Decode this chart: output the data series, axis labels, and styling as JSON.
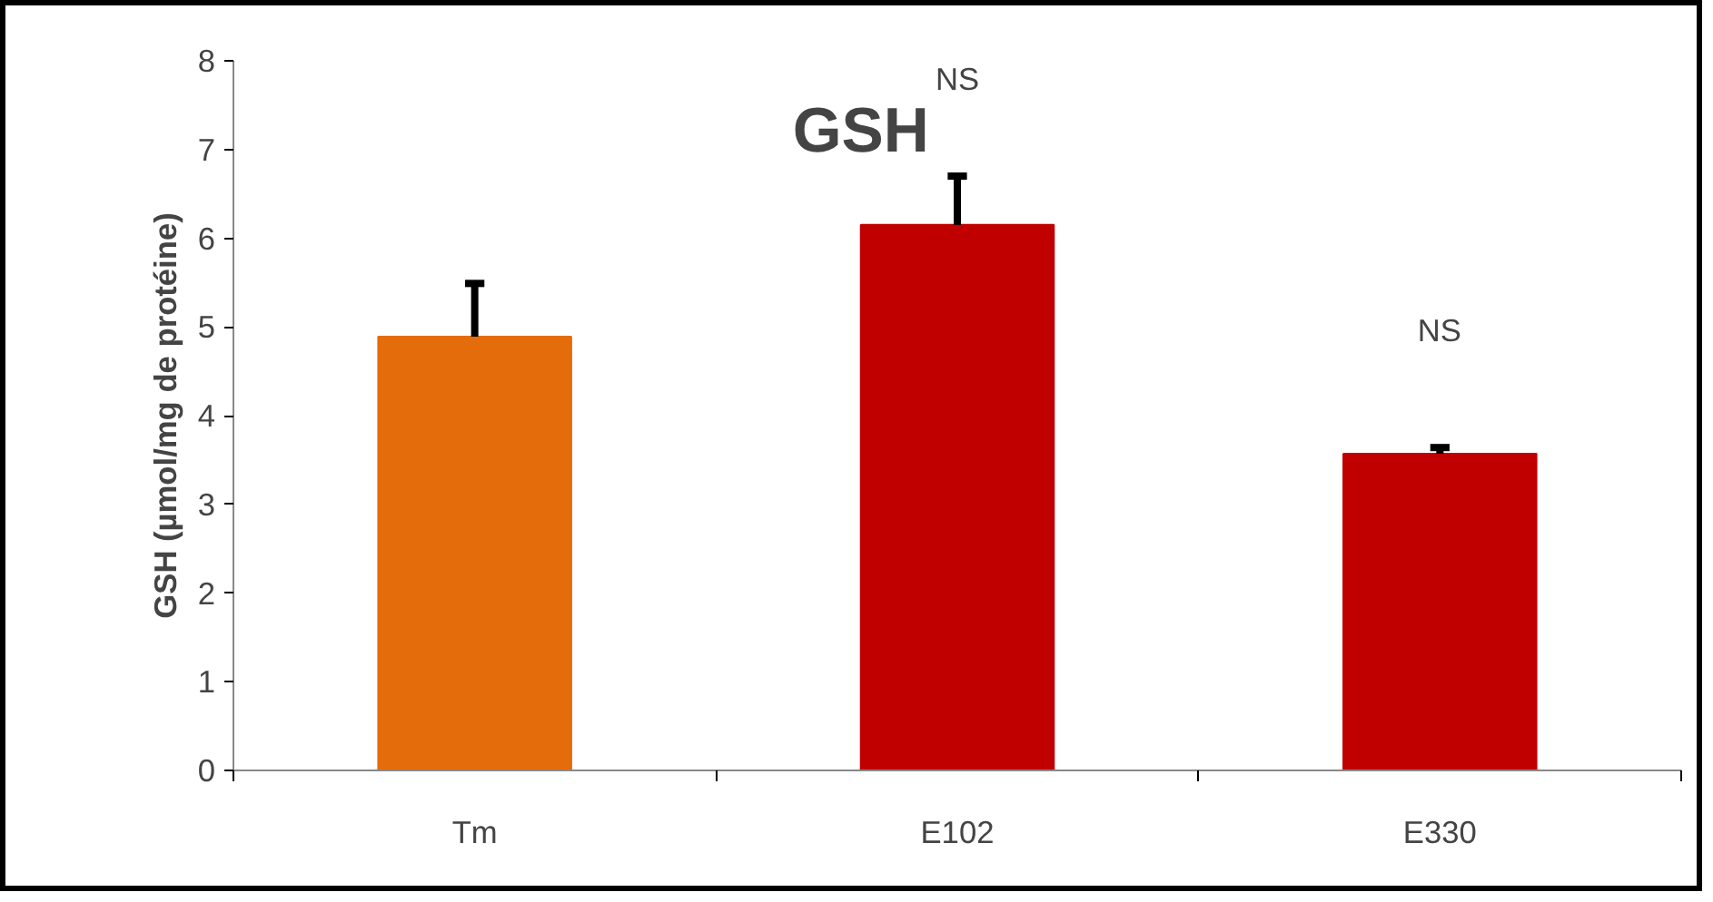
{
  "chart_data": {
    "type": "bar",
    "title": "GSH",
    "ylabel": "GSH (µmol/mg de protéine)",
    "categories": [
      "Tm",
      "E102",
      "E330"
    ],
    "values": [
      4.89,
      6.15,
      3.57
    ],
    "colors": [
      "#e46c0a",
      "#c00000",
      "#c00000"
    ],
    "errors": [
      [
        4.89,
        5.49
      ],
      [
        6.15,
        6.7
      ],
      [
        3.57,
        3.64
      ]
    ],
    "ylim": [
      0,
      8
    ],
    "yticks": [
      0,
      1,
      2,
      3,
      4,
      5,
      6,
      7,
      8
    ],
    "grid": false,
    "annotations": [
      "NS",
      "NS"
    ]
  }
}
